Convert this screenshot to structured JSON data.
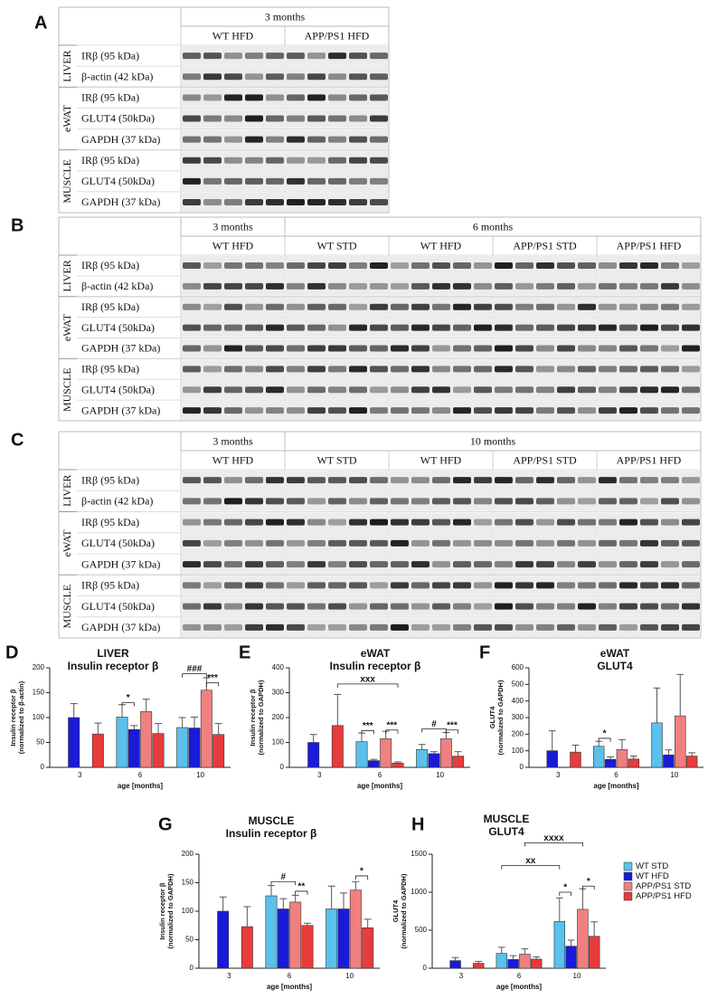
{
  "blots": [
    {
      "label": "A",
      "periods": [
        {
          "text": "3 months",
          "groups": [
            "WT HFD",
            "APP/PS1 HFD"
          ]
        }
      ],
      "tissues": [
        {
          "name": "LIVER",
          "rows": [
            "IRβ (95 kDa)",
            "β-actin (42 kDa)"
          ]
        },
        {
          "name": "eWAT",
          "rows": [
            "IRβ (95 kDa)",
            "GLUT4 (50kDa)",
            "GAPDH (37 kDa)"
          ]
        },
        {
          "name": "MUSCLE",
          "rows": [
            "IRβ (95 kDa)",
            "GLUT4 (50kDa)",
            "GAPDH (37 kDa)"
          ]
        }
      ]
    },
    {
      "label": "B",
      "periods": [
        {
          "text": "3 months",
          "groups": [
            "WT HFD"
          ]
        },
        {
          "text": "6 months",
          "groups": [
            "WT STD",
            "WT HFD",
            "APP/PS1 STD",
            "APP/PS1 HFD"
          ]
        }
      ],
      "tissues": [
        {
          "name": "LIVER",
          "rows": [
            "IRβ (95 kDa)",
            "β-actin (42 kDa)"
          ]
        },
        {
          "name": "eWAT",
          "rows": [
            "IRβ (95 kDa)",
            "GLUT4 (50kDa)",
            "GAPDH (37 kDa)"
          ]
        },
        {
          "name": "MUSCLE",
          "rows": [
            "IRβ (95 kDa)",
            "GLUT4 (50kDa)",
            "GAPDH (37 kDa)"
          ]
        }
      ]
    },
    {
      "label": "C",
      "periods": [
        {
          "text": "3 months",
          "groups": [
            "WT HFD"
          ]
        },
        {
          "text": "10 months",
          "groups": [
            "WT STD",
            "WT HFD",
            "APP/PS1 STD",
            "APP/PS1 HFD"
          ]
        }
      ],
      "tissues": [
        {
          "name": "LIVER",
          "rows": [
            "IRβ (95 kDa)",
            "β-actin (42 kDa)"
          ]
        },
        {
          "name": "eWAT",
          "rows": [
            "IRβ (95 kDa)",
            "GLUT4 (50kDa)",
            "GAPDH (37 kDa)"
          ]
        },
        {
          "name": "MUSCLE",
          "rows": [
            "IRβ (95 kDa)",
            "GLUT4 (50kDa)",
            "GAPDH (37 kDa)"
          ]
        }
      ]
    }
  ],
  "chart_data": [
    {
      "type": "bar",
      "panel": "D",
      "title": [
        "LIVER",
        "Insulin receptor β"
      ],
      "y_label": [
        "Insulin receptor β",
        "(normalized to β-actin)"
      ],
      "x_label": "age [months]",
      "categories": [
        "3",
        "6",
        "10"
      ],
      "ylim": [
        0,
        200
      ],
      "yticks": [
        0,
        50,
        100,
        150,
        200
      ],
      "series": [
        {
          "color": "#5bc0eb",
          "values": [
            null,
            101,
            80
          ],
          "errors": [
            null,
            25,
            20
          ]
        },
        {
          "color": "#1a1adb",
          "values": [
            100,
            76,
            79
          ],
          "errors": [
            28,
            8,
            22
          ]
        },
        {
          "color": "#f08080",
          "values": [
            null,
            112,
            155
          ],
          "errors": [
            null,
            25,
            25
          ]
        },
        {
          "color": "#e83b3b",
          "values": [
            67,
            68,
            66
          ],
          "errors": [
            22,
            20,
            22
          ]
        }
      ],
      "annotations": [
        "*",
        "###",
        "***"
      ]
    },
    {
      "type": "bar",
      "panel": "E",
      "title": [
        "eWAT",
        "Insulin receptor β"
      ],
      "y_label": [
        "Insulin receptor β",
        "(normalized to GAPDH)"
      ],
      "x_label": "age [months]",
      "categories": [
        "3",
        "6",
        "10"
      ],
      "ylim": [
        0,
        400
      ],
      "yticks": [
        0,
        100,
        200,
        300,
        400
      ],
      "series": [
        {
          "color": "#5bc0eb",
          "values": [
            null,
            103,
            72
          ],
          "errors": [
            null,
            35,
            20
          ]
        },
        {
          "color": "#1a1adb",
          "values": [
            100,
            27,
            55
          ],
          "errors": [
            32,
            5,
            8
          ]
        },
        {
          "color": "#f08080",
          "values": [
            null,
            115,
            115
          ],
          "errors": [
            null,
            30,
            25
          ]
        },
        {
          "color": "#e83b3b",
          "values": [
            168,
            17,
            45
          ],
          "errors": [
            125,
            5,
            18
          ]
        }
      ],
      "annotations": [
        "xxx",
        "***",
        "***",
        "#",
        "***"
      ]
    },
    {
      "type": "bar",
      "panel": "F",
      "title": [
        "eWAT",
        "GLUT4"
      ],
      "y_label": [
        "GLUT4",
        "(normalized to GAPDH)"
      ],
      "x_label": "age [months]",
      "categories": [
        "3",
        "6",
        "10"
      ],
      "ylim": [
        0,
        600
      ],
      "yticks": [
        0,
        100,
        200,
        300,
        400,
        500,
        600
      ],
      "series": [
        {
          "color": "#5bc0eb",
          "values": [
            null,
            127,
            268
          ],
          "errors": [
            null,
            30,
            210
          ]
        },
        {
          "color": "#1a1adb",
          "values": [
            100,
            48,
            75
          ],
          "errors": [
            120,
            15,
            30
          ]
        },
        {
          "color": "#f08080",
          "values": [
            null,
            107,
            310
          ],
          "errors": [
            null,
            60,
            250
          ]
        },
        {
          "color": "#e83b3b",
          "values": [
            92,
            50,
            68
          ],
          "errors": [
            42,
            18,
            20
          ]
        }
      ],
      "annotations": [
        "*"
      ]
    },
    {
      "type": "bar",
      "panel": "G",
      "title": [
        "MUSCLE",
        "Insulin receptor β"
      ],
      "y_label": [
        "Insulin receptor β",
        "(normalized to GAPDH)"
      ],
      "x_label": "age [months]",
      "categories": [
        "3",
        "6",
        "10"
      ],
      "ylim": [
        0,
        200
      ],
      "yticks": [
        0,
        50,
        100,
        150,
        200
      ],
      "series": [
        {
          "color": "#5bc0eb",
          "values": [
            null,
            127,
            104
          ],
          "errors": [
            null,
            18,
            40
          ]
        },
        {
          "color": "#1a1adb",
          "values": [
            100,
            104,
            104
          ],
          "errors": [
            25,
            18,
            28
          ]
        },
        {
          "color": "#f08080",
          "values": [
            null,
            116,
            137
          ],
          "errors": [
            null,
            12,
            15
          ]
        },
        {
          "color": "#e83b3b",
          "values": [
            73,
            75,
            71
          ],
          "errors": [
            35,
            4,
            15
          ]
        }
      ],
      "annotations": [
        "#",
        "**",
        "*"
      ]
    },
    {
      "type": "bar",
      "panel": "H",
      "title": [
        "MUSCLE",
        "GLUT4"
      ],
      "y_label": [
        "GLUT4",
        "(normalized to  GAPDH)"
      ],
      "x_label": "age [months]",
      "categories": [
        "3",
        "6",
        "10"
      ],
      "ylim": [
        0,
        1500
      ],
      "yticks": [
        0,
        500,
        1000,
        1500
      ],
      "legend": "right",
      "series": [
        {
          "name": "WT STD",
          "color": "#5bc0eb",
          "values": [
            null,
            195,
            615
          ],
          "errors": [
            null,
            80,
            310
          ]
        },
        {
          "name": "WT HFD",
          "color": "#1a1adb",
          "values": [
            100,
            115,
            290
          ],
          "errors": [
            40,
            50,
            80
          ]
        },
        {
          "name": "APP/PS1 STD",
          "color": "#f08080",
          "values": [
            null,
            185,
            775
          ],
          "errors": [
            null,
            70,
            270
          ]
        },
        {
          "name": "APP/PS1 HFD",
          "color": "#e83b3b",
          "values": [
            65,
            120,
            420
          ],
          "errors": [
            25,
            30,
            190
          ]
        }
      ],
      "annotations": [
        "xxxx",
        "xx",
        "*",
        "*"
      ]
    }
  ]
}
